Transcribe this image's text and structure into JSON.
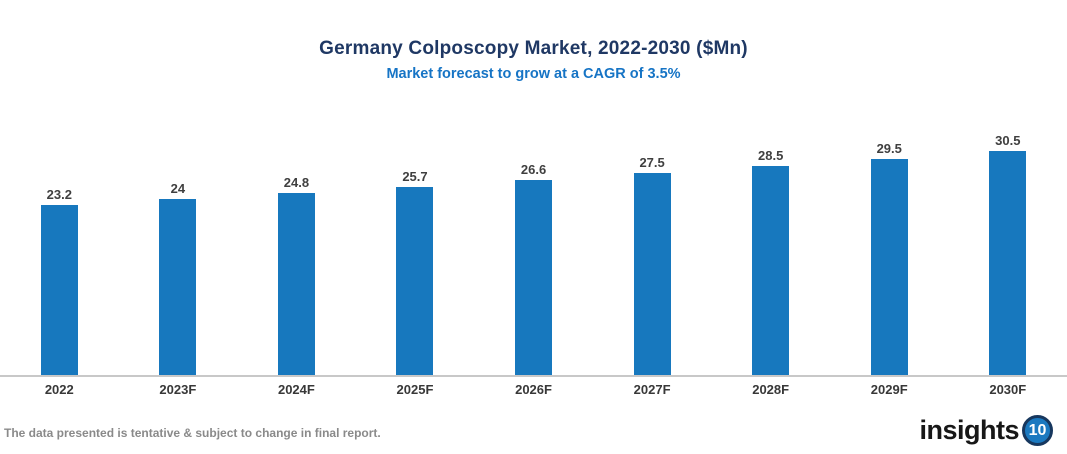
{
  "header": {
    "title": "Germany Colposcopy Market, 2022-2030 ($Mn)",
    "subtitle": "Market forecast to grow at a CAGR of 3.5%"
  },
  "chart_data": {
    "type": "bar",
    "title": "Germany Colposcopy Market, 2022-2030 ($Mn)",
    "subtitle": "Market forecast to grow at a CAGR of 3.5%",
    "categories": [
      "2022",
      "2023F",
      "2024F",
      "2025F",
      "2026F",
      "2027F",
      "2028F",
      "2029F",
      "2030F"
    ],
    "values": [
      23.2,
      24,
      24.8,
      25.7,
      26.6,
      27.5,
      28.5,
      29.5,
      30.5
    ],
    "xlabel": "",
    "ylabel": "",
    "ylim": [
      0,
      32
    ],
    "grid": false,
    "legend": "none",
    "value_labels_shown": true
  },
  "footer": {
    "disclaimer": "The data presented is tentative & subject to change in final report.",
    "logo_text": "insights",
    "logo_badge": "10"
  },
  "colors": {
    "bar": "#1778be",
    "title": "#1f3864",
    "subtitle": "#1674c5",
    "value_label": "#3f3f3f",
    "axis_line": "#c8c8c8",
    "x_label": "#383838",
    "disclaimer": "#8a8a8a",
    "logo_badge_bg": "#1b79c0",
    "logo_badge_ring": "#17375e"
  }
}
